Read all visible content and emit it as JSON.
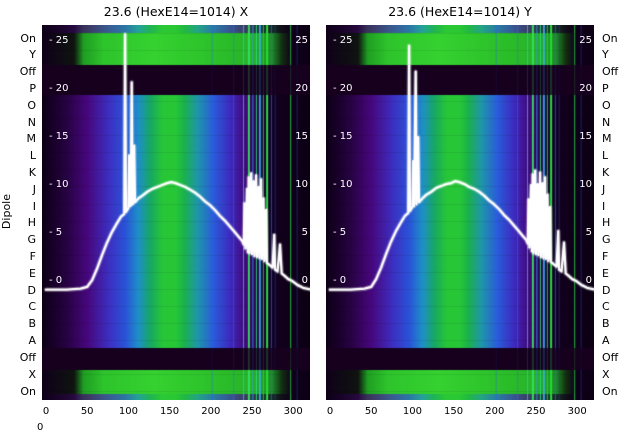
{
  "figure": {
    "corner_label": "0"
  },
  "left_axis": {
    "label": "Dipole",
    "rows": [
      "On",
      "Y",
      "Off",
      "P",
      "O",
      "N",
      "M",
      "L",
      "K",
      "J",
      "I",
      "H",
      "G",
      "F",
      "E",
      "D",
      "C",
      "B",
      "A",
      "Off",
      "X",
      "On"
    ]
  },
  "right_axis": {
    "rows": [
      "On",
      "Y",
      "Off",
      "P",
      "O",
      "N",
      "M",
      "L",
      "K",
      "J",
      "I",
      "H",
      "G",
      "F",
      "E",
      "D",
      "C",
      "B",
      "A",
      "Off",
      "X",
      "On"
    ]
  },
  "chart_data": [
    {
      "type": "heatmap",
      "overlay": "line",
      "title": "23.6 (HexE14=1014) X",
      "xlabel": "",
      "ylabel": "",
      "x_ticks": [
        0,
        50,
        100,
        150,
        200,
        250,
        300
      ],
      "x_range": [
        0,
        325
      ],
      "y_range": [
        -2,
        27
      ],
      "y_tick_values": [
        25,
        20,
        15,
        10,
        5,
        0
      ],
      "y_ticks_left": [
        "- 25",
        "- 20",
        "- 15",
        "- 10",
        "- 5",
        "- 0"
      ],
      "y_ticks_right": [
        "25",
        "20",
        "15",
        "10",
        "5",
        "0"
      ],
      "heatmap": {
        "dark_color": "#16001e",
        "body_stops": [
          [
            0,
            "#0d0016"
          ],
          [
            0.055,
            "#1c0130"
          ],
          [
            0.1,
            "#2a0347"
          ],
          [
            0.17,
            "#47077e"
          ],
          [
            0.25,
            "#3d2fc0"
          ],
          [
            0.31,
            "#2a52d8"
          ],
          [
            0.36,
            "#1f8fc8"
          ],
          [
            0.405,
            "#17a862"
          ],
          [
            0.45,
            "#27c637"
          ],
          [
            0.5,
            "#27c637"
          ],
          [
            0.53,
            "#1bb24b"
          ],
          [
            0.58,
            "#1f96aa"
          ],
          [
            0.64,
            "#2a5cd8"
          ],
          [
            0.7,
            "#3c2cc0"
          ],
          [
            0.755,
            "#46087e"
          ],
          [
            0.8,
            "#260442"
          ],
          [
            0.85,
            "#130120"
          ],
          [
            1,
            "#0c0013"
          ]
        ],
        "green_stops": [
          [
            0,
            "#10001a"
          ],
          [
            0.12,
            "#0f1410"
          ],
          [
            0.155,
            "#1f9e22"
          ],
          [
            0.23,
            "#2ec42c"
          ],
          [
            0.42,
            "#35d230"
          ],
          [
            0.6,
            "#2ec42c"
          ],
          [
            0.78,
            "#28b426"
          ],
          [
            0.86,
            "#1c8c1e"
          ],
          [
            0.895,
            "#123012"
          ],
          [
            0.93,
            "#10001a"
          ],
          [
            1,
            "#0d0016"
          ]
        ],
        "lines": [
          [
            0.635,
            "#2d5cff",
            1,
            0.45
          ],
          [
            0.715,
            "#3a66ff",
            1,
            0.5
          ],
          [
            0.752,
            "#29c8ea",
            1,
            0.75
          ],
          [
            0.772,
            "#39e866",
            2,
            0.9
          ],
          [
            0.787,
            "#2f9cff",
            1,
            0.85
          ],
          [
            0.8,
            "#2bea84",
            1,
            0.85
          ],
          [
            0.813,
            "#3fb4ff",
            2,
            0.85
          ],
          [
            0.826,
            "#2cdc55",
            1,
            0.8
          ],
          [
            0.84,
            "#27e842",
            2,
            0.95
          ],
          [
            0.856,
            "#3a62e0",
            1,
            0.7
          ],
          [
            0.87,
            "#2a3fb0",
            1,
            0.5
          ],
          [
            0.928,
            "#2fd846",
            1,
            0.85
          ],
          [
            0.952,
            "#2946c8",
            1,
            0.45
          ]
        ]
      },
      "line": [
        [
          0,
          -0.8
        ],
        [
          25,
          -0.8
        ],
        [
          42,
          -0.7
        ],
        [
          50,
          -0.5
        ],
        [
          56,
          0.2
        ],
        [
          62,
          1.4
        ],
        [
          68,
          2.8
        ],
        [
          74,
          4.1
        ],
        [
          80,
          5.2
        ],
        [
          86,
          6.1
        ],
        [
          91,
          6.8
        ],
        [
          95,
          7.1
        ],
        [
          96,
          25.8
        ],
        [
          97,
          7.3
        ],
        [
          100,
          7.7
        ],
        [
          101,
          13.2
        ],
        [
          102,
          7.9
        ],
        [
          103,
          8.0
        ],
        [
          104,
          20.8
        ],
        [
          105,
          8.1
        ],
        [
          106,
          8.2
        ],
        [
          107,
          14.2
        ],
        [
          108,
          8.3
        ],
        [
          112,
          8.7
        ],
        [
          117,
          9.0
        ],
        [
          123,
          9.4
        ],
        [
          129,
          9.7
        ],
        [
          135,
          9.9
        ],
        [
          141,
          10.1
        ],
        [
          147,
          10.3
        ],
        [
          152,
          10.4
        ],
        [
          157,
          10.3
        ],
        [
          163,
          10.1
        ],
        [
          169,
          9.9
        ],
        [
          175,
          9.6
        ],
        [
          181,
          9.3
        ],
        [
          187,
          8.9
        ],
        [
          193,
          8.4
        ],
        [
          199,
          8.0
        ],
        [
          205,
          7.5
        ],
        [
          211,
          6.9
        ],
        [
          217,
          6.4
        ],
        [
          223,
          5.8
        ],
        [
          229,
          5.2
        ],
        [
          234,
          4.7
        ],
        [
          238,
          4.3
        ],
        [
          240,
          3.9
        ],
        [
          241,
          8.2
        ],
        [
          242,
          3.5
        ],
        [
          244,
          9.7
        ],
        [
          245,
          3.1
        ],
        [
          246,
          10.9
        ],
        [
          247,
          3.0
        ],
        [
          249,
          11.3
        ],
        [
          250,
          2.9
        ],
        [
          252,
          10.5
        ],
        [
          253,
          2.7
        ],
        [
          255,
          11.1
        ],
        [
          256,
          2.6
        ],
        [
          258,
          9.9
        ],
        [
          259,
          2.5
        ],
        [
          261,
          10.7
        ],
        [
          262,
          2.4
        ],
        [
          264,
          8.7
        ],
        [
          265,
          2.2
        ],
        [
          267,
          7.5
        ],
        [
          268,
          2.0
        ],
        [
          271,
          1.8
        ],
        [
          275,
          1.5
        ],
        [
          277,
          4.9
        ],
        [
          278,
          1.3
        ],
        [
          281,
          1.1
        ],
        [
          284,
          3.9
        ],
        [
          286,
          0.9
        ],
        [
          290,
          0.6
        ],
        [
          294,
          0.3
        ],
        [
          299,
          0.1
        ],
        [
          305,
          -0.3
        ],
        [
          312,
          -0.6
        ],
        [
          322,
          -0.8
        ]
      ]
    },
    {
      "type": "heatmap",
      "overlay": "line",
      "title": "23.6 (HexE14=1014) Y",
      "xlabel": "",
      "ylabel": "",
      "x_ticks": [
        0,
        50,
        100,
        150,
        200,
        250,
        300
      ],
      "x_range": [
        0,
        325
      ],
      "y_range": [
        -2,
        27
      ],
      "y_tick_values": [
        25,
        20,
        15,
        10,
        5,
        0
      ],
      "y_ticks_left": [
        "- 25",
        "- 20",
        "- 15",
        "- 10",
        "- 5",
        "- 0"
      ],
      "y_ticks_right": [
        "25",
        "20",
        "15",
        "10",
        "5",
        "0"
      ],
      "heatmap": {
        "dark_color": "#16001e",
        "body_stops": [
          [
            0,
            "#0d0016"
          ],
          [
            0.055,
            "#1c0130"
          ],
          [
            0.1,
            "#2a0347"
          ],
          [
            0.17,
            "#47077e"
          ],
          [
            0.25,
            "#3d2fc0"
          ],
          [
            0.31,
            "#2a52d8"
          ],
          [
            0.36,
            "#1f8fc8"
          ],
          [
            0.405,
            "#17a862"
          ],
          [
            0.45,
            "#27c637"
          ],
          [
            0.5,
            "#27c637"
          ],
          [
            0.53,
            "#1bb24b"
          ],
          [
            0.58,
            "#1f96aa"
          ],
          [
            0.64,
            "#2a5cd8"
          ],
          [
            0.7,
            "#3c2cc0"
          ],
          [
            0.755,
            "#46087e"
          ],
          [
            0.8,
            "#260442"
          ],
          [
            0.85,
            "#130120"
          ],
          [
            1,
            "#0c0013"
          ]
        ],
        "green_stops": [
          [
            0,
            "#10001a"
          ],
          [
            0.12,
            "#0f1410"
          ],
          [
            0.155,
            "#1f9e22"
          ],
          [
            0.23,
            "#2ec42c"
          ],
          [
            0.42,
            "#35d230"
          ],
          [
            0.6,
            "#2ec42c"
          ],
          [
            0.78,
            "#28b426"
          ],
          [
            0.86,
            "#1c8c1e"
          ],
          [
            0.895,
            "#123012"
          ],
          [
            0.93,
            "#10001a"
          ],
          [
            1,
            "#0d0016"
          ]
        ],
        "lines": [
          [
            0.635,
            "#2d5cff",
            1,
            0.45
          ],
          [
            0.715,
            "#3a66ff",
            1,
            0.5
          ],
          [
            0.752,
            "#29c8ea",
            1,
            0.75
          ],
          [
            0.772,
            "#39e866",
            2,
            0.9
          ],
          [
            0.787,
            "#2f9cff",
            1,
            0.85
          ],
          [
            0.8,
            "#2bea84",
            1,
            0.85
          ],
          [
            0.813,
            "#3fb4ff",
            2,
            0.85
          ],
          [
            0.826,
            "#2cdc55",
            1,
            0.8
          ],
          [
            0.84,
            "#27e842",
            2,
            0.95
          ],
          [
            0.856,
            "#3a62e0",
            1,
            0.7
          ],
          [
            0.87,
            "#2a3fb0",
            1,
            0.5
          ],
          [
            0.928,
            "#2fd846",
            1,
            0.85
          ],
          [
            0.952,
            "#2946c8",
            1,
            0.45
          ]
        ]
      },
      "line": [
        [
          0,
          -0.8
        ],
        [
          25,
          -0.8
        ],
        [
          42,
          -0.7
        ],
        [
          50,
          -0.5
        ],
        [
          56,
          0.3
        ],
        [
          62,
          1.5
        ],
        [
          68,
          2.9
        ],
        [
          74,
          4.2
        ],
        [
          80,
          5.3
        ],
        [
          86,
          6.2
        ],
        [
          91,
          6.9
        ],
        [
          95,
          7.2
        ],
        [
          96,
          24.6
        ],
        [
          97,
          7.4
        ],
        [
          100,
          7.8
        ],
        [
          101,
          12.6
        ],
        [
          102,
          7.9
        ],
        [
          104,
          21.9
        ],
        [
          105,
          8.1
        ],
        [
          107,
          15.1
        ],
        [
          108,
          8.3
        ],
        [
          112,
          8.7
        ],
        [
          117,
          9.1
        ],
        [
          123,
          9.4
        ],
        [
          129,
          9.8
        ],
        [
          135,
          10.0
        ],
        [
          141,
          10.2
        ],
        [
          147,
          10.3
        ],
        [
          152,
          10.5
        ],
        [
          157,
          10.4
        ],
        [
          163,
          10.2
        ],
        [
          169,
          9.9
        ],
        [
          175,
          9.7
        ],
        [
          181,
          9.4
        ],
        [
          187,
          9.0
        ],
        [
          193,
          8.5
        ],
        [
          199,
          8.1
        ],
        [
          205,
          7.6
        ],
        [
          211,
          7.0
        ],
        [
          217,
          6.5
        ],
        [
          223,
          5.9
        ],
        [
          229,
          5.3
        ],
        [
          234,
          4.8
        ],
        [
          238,
          4.4
        ],
        [
          240,
          4.0
        ],
        [
          241,
          8.6
        ],
        [
          242,
          3.6
        ],
        [
          244,
          10.1
        ],
        [
          245,
          3.2
        ],
        [
          246,
          11.2
        ],
        [
          247,
          3.0
        ],
        [
          249,
          11.6
        ],
        [
          250,
          2.9
        ],
        [
          252,
          10.2
        ],
        [
          253,
          2.8
        ],
        [
          255,
          11.4
        ],
        [
          256,
          2.6
        ],
        [
          258,
          10.3
        ],
        [
          259,
          2.5
        ],
        [
          261,
          10.9
        ],
        [
          262,
          2.4
        ],
        [
          264,
          9.1
        ],
        [
          265,
          2.2
        ],
        [
          267,
          7.8
        ],
        [
          268,
          2.1
        ],
        [
          271,
          1.9
        ],
        [
          275,
          1.6
        ],
        [
          277,
          5.3
        ],
        [
          278,
          1.3
        ],
        [
          281,
          1.1
        ],
        [
          284,
          4.1
        ],
        [
          286,
          0.9
        ],
        [
          290,
          0.6
        ],
        [
          294,
          0.3
        ],
        [
          299,
          0.1
        ],
        [
          305,
          -0.3
        ],
        [
          312,
          -0.6
        ],
        [
          322,
          -0.8
        ]
      ]
    }
  ]
}
